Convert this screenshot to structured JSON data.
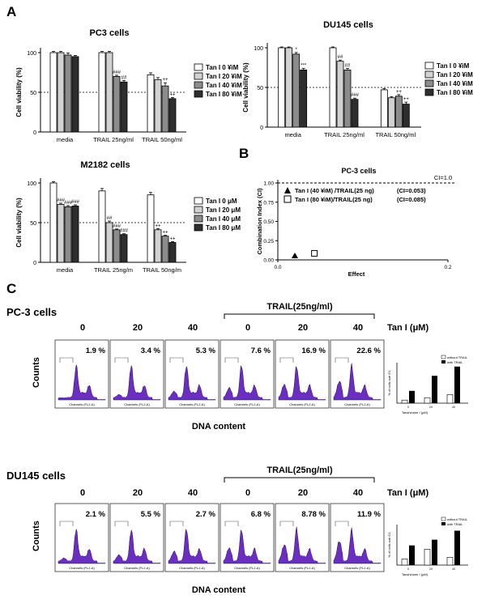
{
  "panels": {
    "a": "A",
    "b": "B",
    "c": "C"
  },
  "chart_data": [
    {
      "type": "bar",
      "title": "PC3 cells",
      "ylabel": "Cell viability (%)",
      "ylim": [
        0,
        100
      ],
      "yticks": [
        "0",
        "50",
        "100"
      ],
      "categories": [
        "media",
        "TRAIL 25ng/ml",
        "TRAIL 50ng/ml"
      ],
      "series": [
        {
          "name": "Tan I 0 ¥ìM",
          "values": [
            100,
            100,
            72
          ]
        },
        {
          "name": "Tan I 20 ¥ìM",
          "values": [
            100,
            100,
            66
          ]
        },
        {
          "name": "Tan I 40 ¥ìM",
          "values": [
            97,
            70,
            58
          ]
        },
        {
          "name": "Tan I 80 ¥ìM",
          "values": [
            95,
            63,
            42
          ]
        }
      ],
      "errors": [
        [
          1.5,
          1.5,
          2.5
        ],
        [
          1.5,
          1.5,
          2.5
        ],
        [
          2.5,
          1.5,
          4
        ],
        [
          1.5,
          2,
          1.5
        ]
      ],
      "annotations": [
        [
          "",
          "",
          ""
        ],
        [
          "",
          "",
          ""
        ],
        [
          "",
          "###",
          "++"
        ],
        [
          "",
          "##",
          "++"
        ]
      ],
      "dashed_y": 50,
      "legend_position": "right"
    },
    {
      "type": "bar",
      "title": "DU145 cells",
      "ylabel": "Cell viability (%)",
      "ylim": [
        0,
        100
      ],
      "yticks": [
        "0",
        "50",
        "100"
      ],
      "categories": [
        "media",
        "TRAIL 25ng/ml",
        "TRAIL 50ng/ml"
      ],
      "series": [
        {
          "name": "Tan I 0 ¥ìM",
          "values": [
            100,
            100,
            47
          ]
        },
        {
          "name": "Tan I 20 ¥ìM",
          "values": [
            100,
            83,
            37
          ]
        },
        {
          "name": "Tan I 40 ¥ìM",
          "values": [
            92,
            72,
            39
          ]
        },
        {
          "name": "Tan I 80 ¥ìM",
          "values": [
            72,
            35,
            29
          ]
        }
      ],
      "errors": [
        [
          1,
          1,
          1.5
        ],
        [
          1,
          1.5,
          1.5
        ],
        [
          2,
          2,
          2
        ],
        [
          2,
          1.5,
          2.5
        ]
      ],
      "annotations": [
        [
          "",
          "",
          ""
        ],
        [
          "",
          "##",
          ""
        ],
        [
          "*",
          "##",
          "++"
        ],
        [
          "***",
          "###",
          "++"
        ]
      ],
      "dashed_y": 50,
      "legend_position": "right"
    },
    {
      "type": "bar",
      "title": "M2182 cells",
      "ylabel": "Cell viability (%)",
      "ylim": [
        0,
        100
      ],
      "yticks": [
        "0",
        "50",
        "100"
      ],
      "categories": [
        "media",
        "TRAIL 25ng/m",
        "TRAIL 50ng/m"
      ],
      "series": [
        {
          "name": "Tan I 0 μM",
          "values": [
            100,
            90,
            85
          ]
        },
        {
          "name": "Tan I 20 μM",
          "values": [
            73,
            50,
            41
          ]
        },
        {
          "name": "Tan I 40 μM",
          "values": [
            70,
            41,
            33
          ]
        },
        {
          "name": "Tan I 80 μM",
          "values": [
            71,
            35,
            25
          ]
        }
      ],
      "errors": [
        [
          1.5,
          3,
          3
        ],
        [
          1.5,
          2,
          1.5
        ],
        [
          1.5,
          1,
          1
        ],
        [
          1.5,
          1,
          1
        ]
      ],
      "annotations": [
        [
          "",
          "",
          ""
        ],
        [
          "###",
          "##",
          "++"
        ],
        [
          "###",
          "###",
          "++"
        ],
        [
          "###",
          "###",
          "++"
        ]
      ],
      "dashed_y": 50,
      "legend_position": "right"
    },
    {
      "type": "scatter",
      "title": "PC-3 cells",
      "ylabel": "Combination Index (CI)",
      "xlabel": "Effect",
      "xlim": [
        0,
        0.2
      ],
      "ylim": [
        0,
        1
      ],
      "xticks": [
        "0.0",
        "0.2"
      ],
      "yticks": [
        "0.00",
        "0.25",
        "0.50",
        "0.75",
        "1.00"
      ],
      "reference_line": {
        "y": 1.0,
        "label": "CI=1.0"
      },
      "points": [
        {
          "x": 0.02,
          "y": 0.053,
          "marker": "triangle",
          "label": "Tan I (40 ¥ìM) /TRAIL(25 ng)",
          "ci_text": "(CI=0.053)"
        },
        {
          "x": 0.043,
          "y": 0.085,
          "marker": "square",
          "label": "Tan I (80 ¥ìM)/TRAIL(25 ng)",
          "ci_text": "(CI=0.085)"
        }
      ]
    }
  ],
  "flow": [
    {
      "cell_line": "PC-3 cells",
      "trail_label": "TRAIL(25ng/ml)",
      "tan_label": "Tan I (μM)",
      "ylabel": "Counts",
      "xlabel": "DNA content",
      "axis_caption": "Channels (FL2-A)",
      "doses": [
        "0",
        "20",
        "40",
        "0",
        "20",
        "40"
      ],
      "percents": [
        "1.9 %",
        "3.4 %",
        "5.3 %",
        "7.6 %",
        "16.9 %",
        "22.6 %"
      ],
      "inset": {
        "legend": [
          "without TRAIL",
          "with TRAIL"
        ],
        "ylabel": "% of cells sub G1",
        "xlabel": "Tanshinone I (μM)",
        "categories": [
          "0",
          "20",
          "40"
        ],
        "without_trail": [
          1.9,
          3.4,
          5.3
        ],
        "with_trail": [
          7.6,
          16.9,
          22.6
        ],
        "ymax": 25
      }
    },
    {
      "cell_line": "DU145 cells",
      "trail_label": "TRAIL(25ng/ml)",
      "tan_label": "Tan I (μM)",
      "ylabel": "Counts",
      "xlabel": "DNA content",
      "axis_caption": "Channels (FL2-A)",
      "doses": [
        "0",
        "20",
        "40",
        "0",
        "20",
        "40"
      ],
      "percents": [
        "2.1 %",
        "5.5 %",
        "2.7 %",
        "6.8 %",
        "8.78 %",
        "11.9 %"
      ],
      "inset": {
        "legend": [
          "without TRAIL",
          "with TRAIL"
        ],
        "ylabel": "% of cells sub G1",
        "xlabel": "Tanshinone I (μM)",
        "categories": [
          "0",
          "20",
          "40"
        ],
        "without_trail": [
          2.1,
          5.5,
          2.7
        ],
        "with_trail": [
          6.8,
          8.78,
          11.9
        ],
        "ymax": 14
      }
    }
  ]
}
